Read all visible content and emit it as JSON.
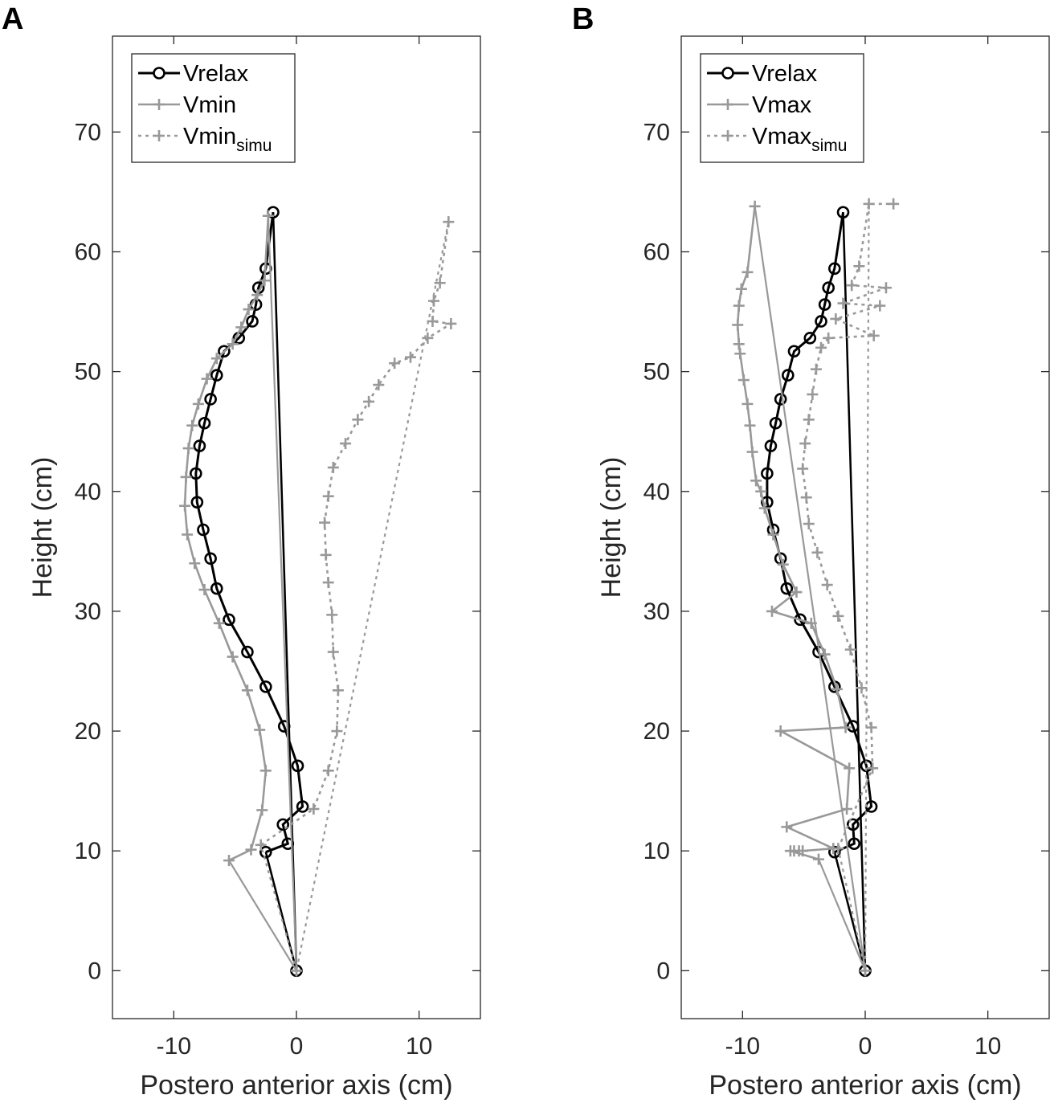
{
  "chart_data": [
    {
      "panel": "A",
      "type": "line",
      "xlabel": "Postero anterior axis (cm)",
      "ylabel": "Height (cm)",
      "xlim": [
        -15,
        15
      ],
      "ylim": [
        -4,
        78
      ],
      "xticks": [
        -10,
        0,
        10
      ],
      "yticks": [
        0,
        10,
        20,
        30,
        40,
        50,
        60,
        70
      ],
      "grid": false,
      "legend_position": "top-left",
      "series": [
        {
          "name": "Vrelax",
          "subscript": "",
          "color": "#000000",
          "dash": "solid",
          "marker": "circle",
          "x": [
            -2.5,
            -0.7,
            0.5,
            0.1,
            -1.0,
            -2.5,
            -4.0,
            -5.5,
            -6.5,
            -7.0,
            -7.6,
            -8.1,
            -8.2,
            -7.9,
            -7.5,
            -7.0,
            -6.5,
            -5.9,
            -4.7,
            -3.6,
            -3.3,
            -3.1,
            -2.5,
            -1.9,
            -1.1,
            0.0
          ],
          "y": [
            9.9,
            10.6,
            13.7,
            17.1,
            20.4,
            23.7,
            26.6,
            29.3,
            31.9,
            34.4,
            36.8,
            39.1,
            41.5,
            43.8,
            45.7,
            47.7,
            49.7,
            51.7,
            52.8,
            54.2,
            55.6,
            57.0,
            58.6,
            63.3,
            12.2,
            0.0
          ]
        },
        {
          "name": "Vmin",
          "subscript": "",
          "color": "#999999",
          "dash": "solid",
          "marker": "plus",
          "x": [
            -5.5,
            -3.7,
            -2.8,
            -2.5,
            -3.0,
            -4.0,
            -5.2,
            -6.3,
            -7.5,
            -8.3,
            -8.9,
            -9.1,
            -9.0,
            -8.8,
            -8.5,
            -8.0,
            -7.3,
            -6.5,
            -5.2,
            -4.5,
            -3.9,
            -3.2,
            -2.6,
            -2.3,
            0.0
          ],
          "y": [
            9.2,
            10.1,
            13.4,
            16.7,
            20.1,
            23.4,
            26.2,
            29.0,
            31.8,
            34.0,
            36.4,
            38.8,
            41.2,
            43.6,
            45.5,
            47.3,
            49.4,
            51.1,
            52.3,
            53.7,
            55.2,
            56.4,
            57.6,
            63.0,
            0.0
          ]
        },
        {
          "name": "Vmin",
          "subscript": "simu",
          "color": "#999999",
          "dash": "dotted",
          "marker": "plus",
          "x": [
            -2.9,
            1.4,
            2.6,
            3.3,
            3.4,
            3.0,
            2.9,
            2.6,
            2.4,
            2.3,
            2.6,
            3.0,
            4.0,
            5.0,
            5.9,
            6.7,
            8.0,
            9.3,
            10.7,
            11.1,
            11.2,
            11.7,
            12.4,
            12.6,
            0.0
          ],
          "y": [
            10.5,
            13.5,
            16.7,
            20.0,
            23.4,
            26.6,
            29.7,
            32.4,
            34.7,
            37.4,
            39.6,
            42.0,
            44.0,
            46.0,
            47.5,
            48.9,
            50.7,
            51.2,
            52.8,
            54.2,
            55.9,
            57.4,
            62.5,
            54.0,
            0.0
          ]
        }
      ]
    },
    {
      "panel": "B",
      "type": "line",
      "xlabel": "Postero anterior axis (cm)",
      "ylabel": "Height (cm)",
      "xlim": [
        -15,
        15
      ],
      "ylim": [
        -4,
        78
      ],
      "xticks": [
        -10,
        0,
        10
      ],
      "yticks": [
        0,
        10,
        20,
        30,
        40,
        50,
        60,
        70
      ],
      "grid": false,
      "legend_position": "top-left",
      "series": [
        {
          "name": "Vrelax",
          "subscript": "",
          "color": "#000000",
          "dash": "solid",
          "marker": "circle",
          "x": [
            -2.5,
            -0.9,
            0.5,
            0.1,
            -1.0,
            -2.5,
            -3.8,
            -5.3,
            -6.4,
            -6.9,
            -7.5,
            -8.0,
            -8.0,
            -7.7,
            -7.3,
            -6.9,
            -6.3,
            -5.8,
            -4.5,
            -3.6,
            -3.3,
            -3.0,
            -2.5,
            -1.8,
            -1.0,
            0.0
          ],
          "y": [
            9.9,
            10.6,
            13.7,
            17.1,
            20.4,
            23.7,
            26.6,
            29.3,
            31.9,
            34.4,
            36.8,
            39.1,
            41.5,
            43.8,
            45.7,
            47.7,
            49.7,
            51.7,
            52.8,
            54.2,
            55.6,
            57.0,
            58.6,
            63.3,
            12.2,
            0.0
          ]
        },
        {
          "name": "Vmax",
          "subscript": "",
          "color": "#999999",
          "dash": "solid",
          "marker": "plus",
          "x": [
            -3.8,
            -2.6,
            -1.5,
            -1.3,
            -1.6,
            -2.3,
            -3.3,
            -4.4,
            -5.6,
            -6.7,
            -7.5,
            -8.2,
            -8.9,
            -9.2,
            -9.4,
            -9.6,
            -9.9,
            -10.2,
            -10.3,
            -10.4,
            -10.3,
            -10.1,
            -9.6,
            -9.0,
            -8.5,
            -7.6,
            -6.9,
            -6.4,
            -6.1,
            -5.8,
            -5.4,
            -5.1,
            0.0
          ],
          "y": [
            9.3,
            10.2,
            13.5,
            16.9,
            20.3,
            23.5,
            26.4,
            29.0,
            31.6,
            33.9,
            36.4,
            38.6,
            40.9,
            43.3,
            45.5,
            47.3,
            49.3,
            51.5,
            52.3,
            53.9,
            55.5,
            56.9,
            58.3,
            63.8,
            40.0,
            30.0,
            20.0,
            12.0,
            10.0,
            10.0,
            10.0,
            10.0,
            0.0
          ]
        },
        {
          "name": "Vmax",
          "subscript": "simu",
          "color": "#999999",
          "dash": "dotted",
          "marker": "plus",
          "x": [
            -2.2,
            0.6,
            0.5,
            -0.3,
            -1.2,
            -2.2,
            -3.1,
            -3.9,
            -4.6,
            -4.8,
            -5.1,
            -4.9,
            -4.6,
            -4.3,
            -4.0,
            -3.6,
            -3.0,
            -2.4,
            -1.8,
            -1.1,
            -0.5,
            0.3,
            0.7,
            1.2,
            1.7,
            2.3,
            0.0
          ],
          "y": [
            10.2,
            16.9,
            20.3,
            23.6,
            26.8,
            29.6,
            32.2,
            34.9,
            37.3,
            39.5,
            41.9,
            44.0,
            46.0,
            48.1,
            50.2,
            52.0,
            52.8,
            54.4,
            55.7,
            57.2,
            58.8,
            64.0,
            53.0,
            55.5,
            57.0,
            64.0,
            0.0
          ]
        }
      ]
    }
  ]
}
